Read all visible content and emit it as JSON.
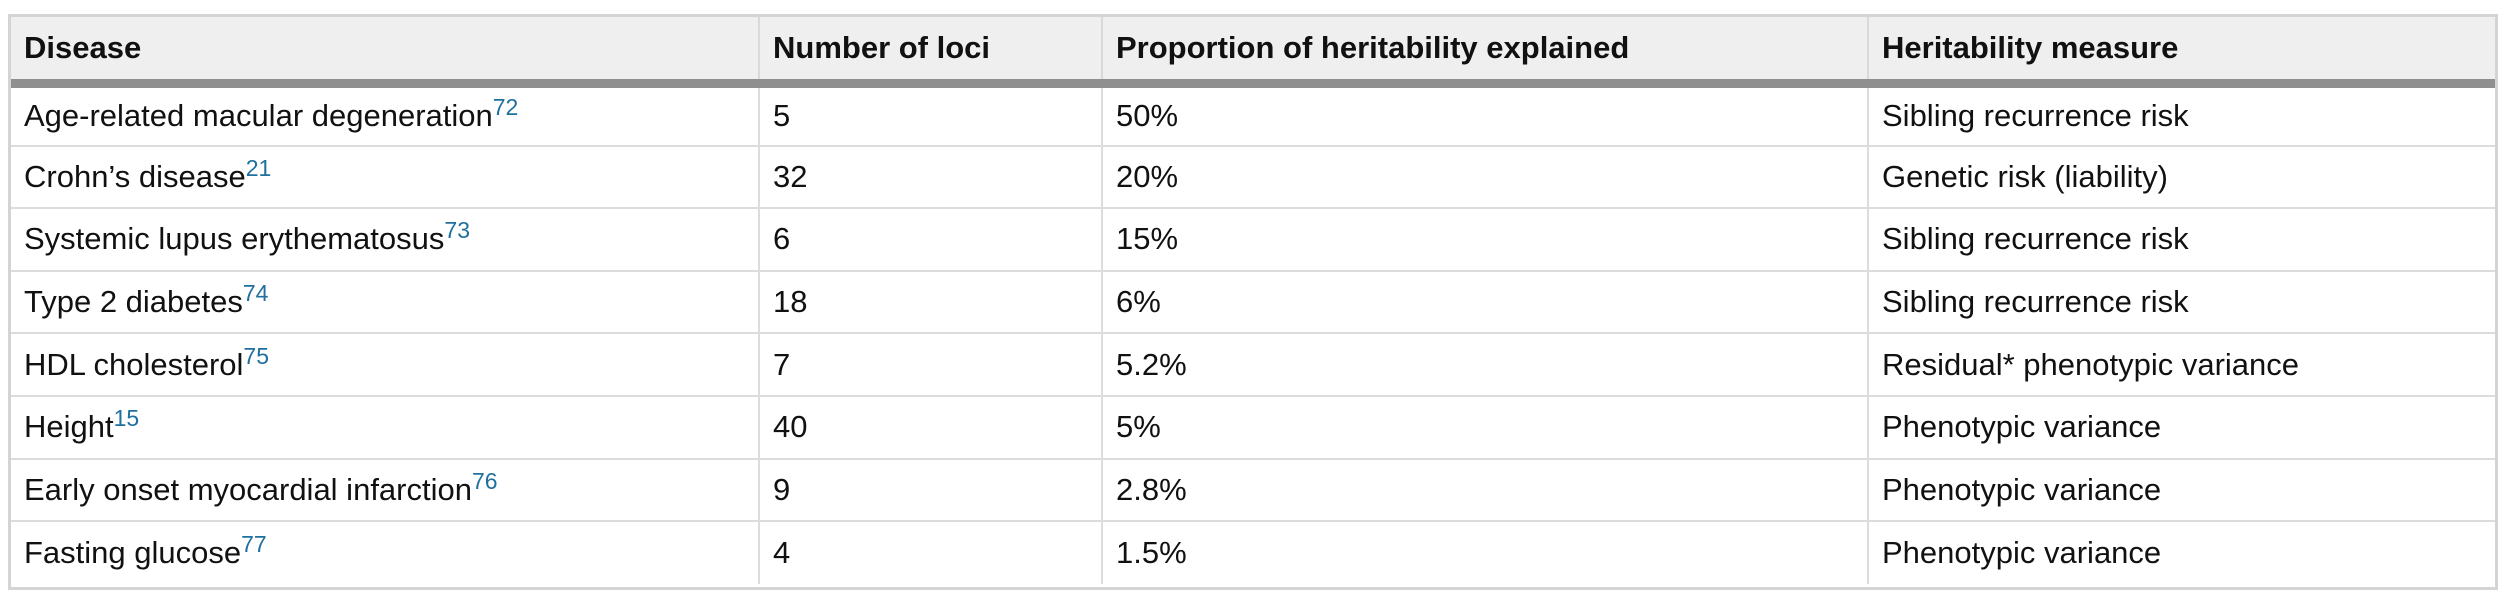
{
  "table": {
    "headers": [
      "Disease",
      "Number of loci",
      "Proportion of heritability explained",
      "Heritability measure"
    ],
    "rows": [
      {
        "disease": "Age-related macular degeneration",
        "ref": "72",
        "loci": "5",
        "proportion": "50%",
        "measure": "Sibling recurrence risk"
      },
      {
        "disease": "Crohn’s disease",
        "ref": "21",
        "loci": "32",
        "proportion": "20%",
        "measure": "Genetic risk (liability)"
      },
      {
        "disease": "Systemic lupus erythematosus",
        "ref": "73",
        "loci": "6",
        "proportion": "15%",
        "measure": "Sibling recurrence risk"
      },
      {
        "disease": "Type 2 diabetes",
        "ref": "74",
        "loci": "18",
        "proportion": "6%",
        "measure": "Sibling recurrence risk"
      },
      {
        "disease": "HDL cholesterol",
        "ref": "75",
        "loci": "7",
        "proportion": "5.2%",
        "measure": "Residual* phenotypic variance"
      },
      {
        "disease": "Height",
        "ref": "15",
        "loci": "40",
        "proportion": "5%",
        "measure": "Phenotypic variance"
      },
      {
        "disease": "Early onset myocardial infarction",
        "ref": "76",
        "loci": "9",
        "proportion": "2.8%",
        "measure": "Phenotypic variance"
      },
      {
        "disease": "Fasting glucose",
        "ref": "77",
        "loci": "4",
        "proportion": "1.5%",
        "measure": "Phenotypic variance"
      }
    ]
  },
  "colors": {
    "header_bg": "#efefef",
    "header_rule": "#8f8f8f",
    "reference_link": "#1f6f9f",
    "grid_line": "#dcdcdc"
  }
}
